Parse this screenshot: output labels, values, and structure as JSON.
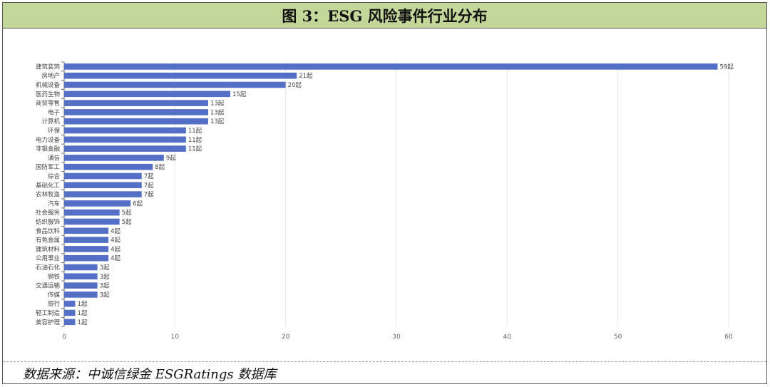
{
  "header": {
    "title": "图 3：ESG 风险事件行业分布"
  },
  "footer": {
    "source": "数据来源：中诚信绿金 ESGRatings 数据库"
  },
  "colors": {
    "bar": "#5470c6",
    "header_bg": "#c4d79b",
    "grid": "#e6e6e6",
    "axis_text": "#666666"
  },
  "chart_data": {
    "type": "bar",
    "orientation": "horizontal",
    "title": "ESG 风险事件行业分布",
    "xlabel": "",
    "ylabel": "",
    "value_suffix": "起",
    "xlim": [
      0,
      60
    ],
    "xticks": [
      0,
      10,
      20,
      30,
      40,
      50,
      60
    ],
    "grid": true,
    "categories": [
      "建筑装饰",
      "房地产",
      "机械设备",
      "医药生物",
      "商贸零售",
      "电子",
      "计算机",
      "环保",
      "电力设备",
      "非银金融",
      "通信",
      "国防军工",
      "综合",
      "基础化工",
      "农林牧渔",
      "汽车",
      "社会服务",
      "纺织服饰",
      "食品饮料",
      "有色金属",
      "建筑材料",
      "公用事业",
      "石油石化",
      "钢铁",
      "交通运输",
      "传媒",
      "银行",
      "轻工制造",
      "美容护理"
    ],
    "values": [
      59,
      21,
      20,
      15,
      13,
      13,
      13,
      11,
      11,
      11,
      9,
      8,
      7,
      7,
      7,
      6,
      5,
      5,
      4,
      4,
      4,
      4,
      3,
      3,
      3,
      3,
      1,
      1,
      1
    ]
  }
}
